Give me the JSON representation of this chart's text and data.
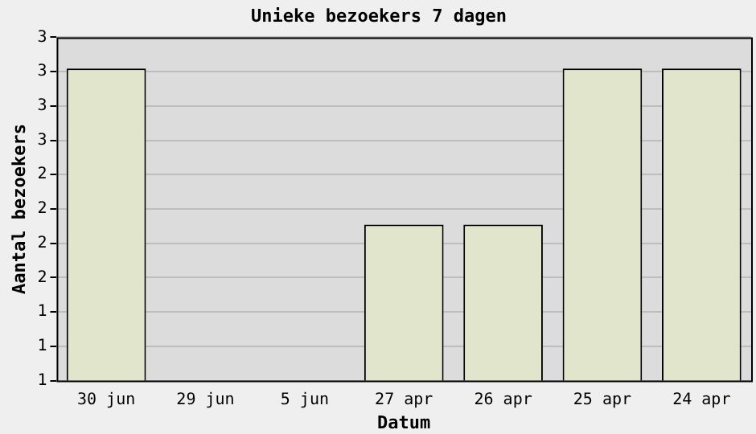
{
  "chart_data": {
    "type": "bar",
    "title": "Unieke bezoekers 7 dagen",
    "xlabel": "Datum",
    "ylabel": "Aantal bezoekers",
    "categories": [
      "30 jun",
      "29 jun",
      "5 jun",
      "27 apr",
      "26 apr",
      "25 apr",
      "24 apr"
    ],
    "values": [
      3,
      null,
      null,
      2,
      2,
      3,
      3
    ],
    "color": "#e0e5cb",
    "ylim": [
      1,
      3.2
    ],
    "yticks": [
      {
        "value": 1,
        "label": "1"
      },
      {
        "value": 1.22,
        "label": "1"
      },
      {
        "value": 1.44,
        "label": "1"
      },
      {
        "value": 1.66,
        "label": "2"
      },
      {
        "value": 1.88,
        "label": "2"
      },
      {
        "value": 2.1,
        "label": "2"
      },
      {
        "value": 2.32,
        "label": "2"
      },
      {
        "value": 2.54,
        "label": "3"
      },
      {
        "value": 2.76,
        "label": "3"
      },
      {
        "value": 2.98,
        "label": "3"
      },
      {
        "value": 3.2,
        "label": "3"
      }
    ],
    "grid": "y",
    "legend": false
  }
}
